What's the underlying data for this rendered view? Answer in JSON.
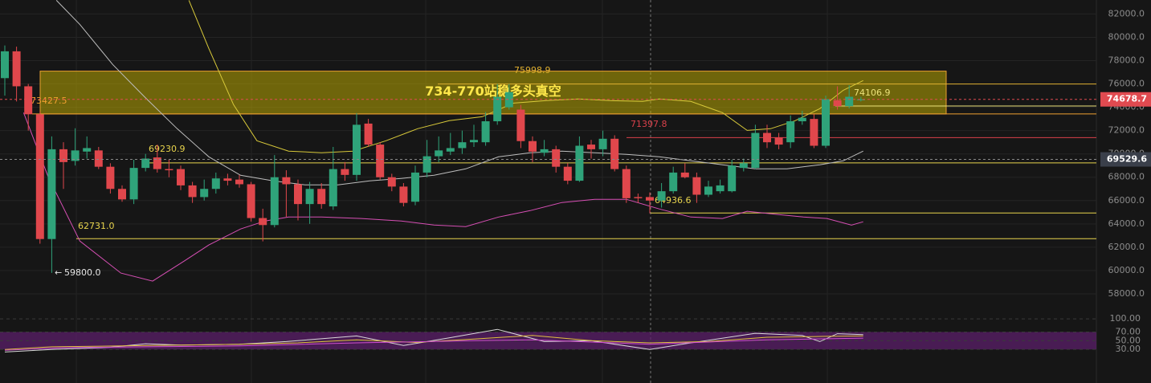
{
  "chart_data": [
    {
      "type": "candlestick",
      "up_color": "#2fa37a",
      "down_color": "#e0474c",
      "ylim": [
        56000,
        83200
      ],
      "yticks": [
        {
          "value": 58000,
          "label": "58000.0"
        },
        {
          "value": 60000,
          "label": "60000.0"
        },
        {
          "value": 62000,
          "label": "62000.0"
        },
        {
          "value": 64000,
          "label": "64000.0"
        },
        {
          "value": 66000,
          "label": "66000.0"
        },
        {
          "value": 68000,
          "label": "68000.0"
        },
        {
          "value": 70000,
          "label": "70000.0"
        },
        {
          "value": 72000,
          "label": "72000.0"
        },
        {
          "value": 74000,
          "label": "74000.0"
        },
        {
          "value": 76000,
          "label": "76000.0"
        },
        {
          "value": 78000,
          "label": "78000.0"
        },
        {
          "value": 80000,
          "label": "80000.0"
        },
        {
          "value": 82000,
          "label": "82000.0"
        }
      ],
      "grid": true,
      "candles": [
        [
          76500,
          79300,
          75000,
          78800
        ],
        [
          78800,
          79200,
          74500,
          75800
        ],
        [
          75800,
          76000,
          72000,
          73400
        ],
        [
          73400,
          73600,
          62300,
          62700
        ],
        [
          62700,
          71500,
          59800,
          70400
        ],
        [
          70400,
          71000,
          67000,
          69300
        ],
        [
          69400,
          72200,
          69000,
          70300
        ],
        [
          70200,
          71500,
          69600,
          70500
        ],
        [
          70300,
          70600,
          68700,
          68900
        ],
        [
          68900,
          69200,
          66600,
          67000
        ],
        [
          67000,
          67300,
          65900,
          66100
        ],
        [
          66100,
          69500,
          65700,
          68800
        ],
        [
          68800,
          70000,
          68500,
          69600
        ],
        [
          69700,
          70800,
          68400,
          68700
        ],
        [
          68700,
          69500,
          68000,
          68600
        ],
        [
          68700,
          69000,
          66900,
          67300
        ],
        [
          67300,
          67600,
          65800,
          66300
        ],
        [
          66300,
          67800,
          66000,
          67000
        ],
        [
          67000,
          68400,
          66600,
          67900
        ],
        [
          67900,
          68300,
          67300,
          67700
        ],
        [
          67800,
          68200,
          67100,
          67400
        ],
        [
          67400,
          67600,
          64200,
          64500
        ],
        [
          64500,
          65300,
          62500,
          63900
        ],
        [
          63900,
          69900,
          63700,
          68000
        ],
        [
          68000,
          68600,
          64600,
          67400
        ],
        [
          67400,
          67800,
          64300,
          65700
        ],
        [
          65700,
          67600,
          64000,
          67000
        ],
        [
          67000,
          67500,
          65300,
          65700
        ],
        [
          65500,
          70600,
          65200,
          68700
        ],
        [
          68700,
          69300,
          67700,
          68200
        ],
        [
          68200,
          73500,
          67700,
          72500
        ],
        [
          72600,
          73000,
          70600,
          70800
        ],
        [
          70800,
          71000,
          67800,
          68000
        ],
        [
          68000,
          68300,
          66800,
          67200
        ],
        [
          67200,
          67500,
          65500,
          65800
        ],
        [
          65900,
          69000,
          65600,
          68400
        ],
        [
          68400,
          71200,
          68000,
          69800
        ],
        [
          69800,
          71500,
          69300,
          70300
        ],
        [
          70200,
          71800,
          69900,
          70500
        ],
        [
          70500,
          72000,
          70000,
          71000
        ],
        [
          71000,
          72500,
          70600,
          71200
        ],
        [
          71000,
          73600,
          70700,
          72800
        ],
        [
          72800,
          76000,
          72500,
          74900
        ],
        [
          74000,
          76000,
          73800,
          75300
        ],
        [
          73800,
          74200,
          70500,
          71100
        ],
        [
          71100,
          71500,
          69300,
          70200
        ],
        [
          70100,
          71200,
          69800,
          70400
        ],
        [
          70400,
          70700,
          68400,
          68900
        ],
        [
          68900,
          69200,
          67400,
          67700
        ],
        [
          67700,
          71500,
          67600,
          70700
        ],
        [
          70800,
          71200,
          69600,
          70400
        ],
        [
          70400,
          72000,
          69800,
          71300
        ],
        [
          71300,
          71600,
          68500,
          68700
        ],
        [
          68700,
          69000,
          65800,
          66200
        ],
        [
          66300,
          66600,
          65800,
          66200
        ],
        [
          66300,
          66700,
          64900,
          66000
        ],
        [
          66000,
          67500,
          65400,
          66800
        ],
        [
          66800,
          68900,
          66600,
          68400
        ],
        [
          68400,
          69200,
          67900,
          68000
        ],
        [
          68000,
          68400,
          65800,
          66500
        ],
        [
          66500,
          67700,
          66300,
          67200
        ],
        [
          66800,
          67800,
          66600,
          67300
        ],
        [
          66800,
          69500,
          66700,
          69000
        ],
        [
          68800,
          69600,
          68500,
          69200
        ],
        [
          68800,
          72500,
          68700,
          71800
        ],
        [
          71800,
          72500,
          70500,
          71000
        ],
        [
          71400,
          71800,
          70400,
          70800
        ],
        [
          71000,
          73300,
          70500,
          72800
        ],
        [
          72800,
          73700,
          72500,
          73100
        ],
        [
          73000,
          73400,
          70500,
          70700
        ],
        [
          70700,
          75000,
          70500,
          74700
        ],
        [
          74600,
          75800,
          73800,
          74100
        ],
        [
          74100,
          75900,
          73900,
          74900
        ],
        [
          74600,
          74900,
          74500,
          74678.7
        ]
      ],
      "lines": [
        {
          "color": "#d8c93a",
          "x": [
            15.7,
            17.4,
            19.5,
            21.5,
            24.2,
            27,
            29.7,
            32.5,
            35.2,
            37.9,
            40.7,
            43.4,
            46.2,
            48.9,
            51.6,
            54.4,
            55.8,
            58.5,
            61.2,
            63.3,
            65.3,
            67.4,
            69.5,
            71.5,
            73.2
          ],
          "values": [
            83170,
            79040,
            74230,
            71130,
            70240,
            70100,
            70240,
            71130,
            72160,
            72850,
            73190,
            74360,
            74570,
            74710,
            74570,
            74500,
            74710,
            74500,
            73540,
            72020,
            72160,
            72850,
            73880,
            75460,
            76290
          ]
        },
        {
          "color": "#bdbdbd",
          "x": [
            4.4,
            6.4,
            9.2,
            11.9,
            14.7,
            17.4,
            20.1,
            22.9,
            25.6,
            28.4,
            31.1,
            33.8,
            36.6,
            39.3,
            42.1,
            44.8,
            47.5,
            50.3,
            53,
            55.8,
            58.5,
            61.2,
            64,
            66.7,
            69.5,
            71.5,
            73.2
          ],
          "values": [
            83170,
            81110,
            77670,
            74910,
            72160,
            69750,
            68170,
            67690,
            67350,
            67350,
            67690,
            67900,
            68170,
            68720,
            69750,
            70100,
            70240,
            70100,
            69960,
            69750,
            69410,
            69070,
            68720,
            68720,
            69070,
            69410,
            70240
          ]
        },
        {
          "color": "#d64fb4",
          "x": [
            1.6,
            3.7,
            6.4,
            9.9,
            12.6,
            15.3,
            17.4,
            20.1,
            22.2,
            24.2,
            27,
            30.4,
            33.8,
            36.6,
            39.3,
            42.1,
            44.8,
            47.5,
            50.3,
            53,
            55.8,
            58.5,
            61.2,
            63.3,
            66,
            68.1,
            70.1,
            72.2,
            73.2
          ],
          "values": [
            73540,
            68030,
            62530,
            59780,
            59090,
            60810,
            62190,
            63560,
            64250,
            64590,
            64590,
            64460,
            64250,
            63900,
            63770,
            64590,
            65140,
            65830,
            66110,
            66110,
            65280,
            64590,
            64460,
            65080,
            64800,
            64590,
            64460,
            63900,
            64180
          ]
        }
      ],
      "zone": {
        "label": "734-770站稳多头真空",
        "ylim": [
          73427.5,
          77100
        ],
        "color": "#c8b400"
      },
      "levels": [
        {
          "value": 75998.9,
          "color": "#e0b030"
        },
        {
          "value": 74106.9,
          "color": "#ece27a"
        },
        {
          "value": 73427.5,
          "color": "#f0a030"
        },
        {
          "value": 71397.8,
          "color": "#d9404a"
        },
        {
          "value": 69230.9,
          "color": "#e8d44d"
        },
        {
          "value": 64936.6,
          "color": "#e8d44d"
        },
        {
          "value": 62731.0,
          "label": "62731.0",
          "color": "#e8d44d"
        },
        {
          "value": 59800.0,
          "label": "59800.0",
          "color": "#e6e6e6"
        }
      ],
      "tags": [
        {
          "value": 74678.7,
          "color": "#e04a50"
        },
        {
          "value": 69529.6,
          "color": "#3a3f4a"
        }
      ]
    },
    {
      "type": "line",
      "ylim": [
        -47,
        104
      ],
      "yticks": [
        {
          "value": 100,
          "label": "100.00"
        },
        {
          "value": 70,
          "label": "70.00"
        },
        {
          "value": 50,
          "label": "50.00"
        },
        {
          "value": 30,
          "label": "30.00"
        }
      ],
      "band": {
        "range": [
          30,
          70
        ],
        "color": "#5b1f6a"
      },
      "series": [
        {
          "color": "#d8d8d8",
          "x": [
            0,
            4,
            9,
            12,
            15,
            20,
            24,
            30,
            34,
            38,
            42,
            46,
            50,
            55,
            58,
            64,
            68,
            69.5,
            71,
            73.2
          ],
          "values": [
            24,
            30,
            35,
            43,
            40,
            42,
            48,
            61,
            39,
            57,
            76,
            48,
            50,
            30,
            43,
            67,
            62,
            48,
            66,
            64
          ]
        },
        {
          "color": "#e0c040",
          "x": [
            0,
            4,
            10,
            15,
            20,
            25,
            30,
            35,
            40,
            45,
            50,
            55,
            60,
            65,
            70,
            73.2
          ],
          "values": [
            30,
            36,
            38,
            40,
            42,
            45,
            52,
            46,
            54,
            62,
            50,
            45,
            48,
            58,
            60,
            61
          ]
        },
        {
          "color": "#d04fd0",
          "x": [
            0,
            5,
            12,
            20,
            30,
            40,
            45,
            55,
            65,
            73.2
          ],
          "values": [
            28,
            34,
            36,
            38,
            45,
            50,
            52,
            42,
            52,
            56
          ]
        }
      ]
    }
  ]
}
